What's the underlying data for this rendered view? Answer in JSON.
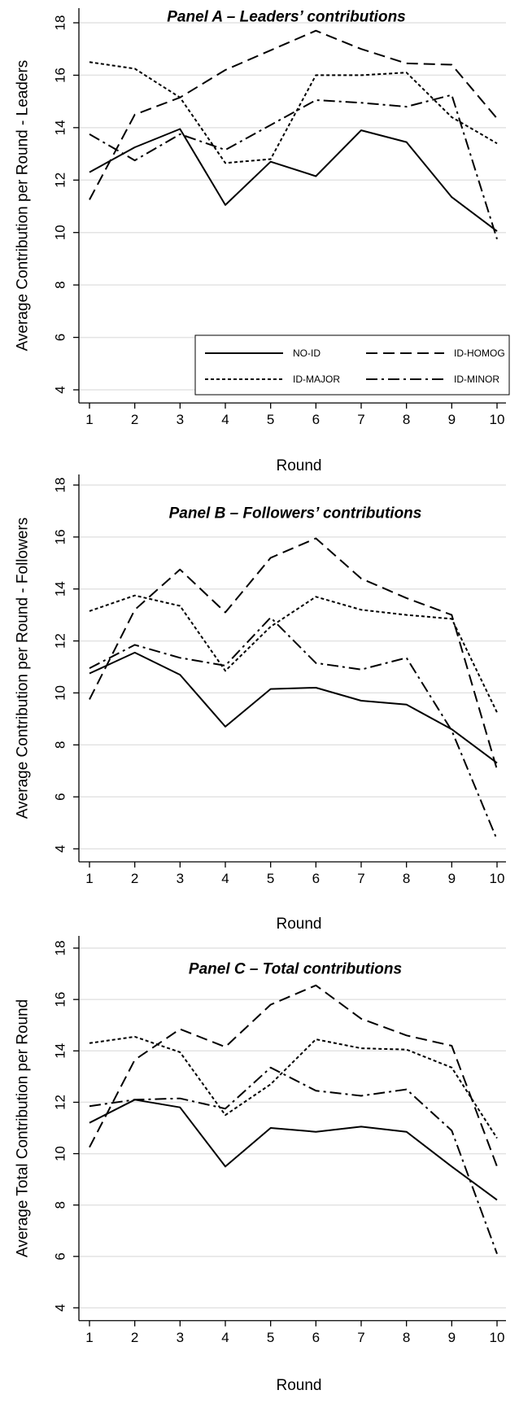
{
  "styles": [
    {
      "name": "NO-ID",
      "dash": "",
      "color": "#000000"
    },
    {
      "name": "ID-HOMOG",
      "dash": "14,7",
      "color": "#000000"
    },
    {
      "name": "ID-MAJOR",
      "dash": "4,3",
      "color": "#000000"
    },
    {
      "name": "ID-MINOR",
      "dash": "14,5,3,5",
      "color": "#000000"
    }
  ],
  "chart_data": [
    {
      "type": "line",
      "title": "Panel A – Leaders’ contributions",
      "xlabel": "Round",
      "ylabel": "Average Contribution per Round - Leaders",
      "x": [
        1,
        2,
        3,
        4,
        5,
        6,
        7,
        8,
        9,
        10
      ],
      "yticks": [
        4,
        6,
        8,
        10,
        12,
        14,
        16,
        18
      ],
      "ylim": [
        3.5,
        18.5
      ],
      "grid": true,
      "legend": {
        "placement": "bottom-right",
        "entries": [
          "NO-ID",
          "ID-HOMOG",
          "ID-MAJOR",
          "ID-MINOR"
        ]
      },
      "series": [
        {
          "name": "NO-ID",
          "values": [
            12.3,
            13.25,
            13.95,
            11.05,
            12.7,
            12.15,
            13.9,
            13.45,
            11.35,
            10.05
          ]
        },
        {
          "name": "ID-HOMOG",
          "values": [
            11.25,
            14.5,
            15.15,
            16.2,
            16.95,
            17.7,
            17.0,
            16.45,
            16.4,
            14.35
          ]
        },
        {
          "name": "ID-MAJOR",
          "values": [
            16.5,
            16.25,
            15.15,
            12.65,
            12.8,
            16.0,
            16.0,
            16.1,
            14.4,
            13.4
          ]
        },
        {
          "name": "ID-MINOR",
          "values": [
            13.75,
            12.75,
            13.75,
            13.15,
            14.1,
            15.05,
            14.95,
            14.8,
            15.25,
            9.75
          ]
        }
      ]
    },
    {
      "type": "line",
      "title": "Panel B – Followers’ contributions",
      "xlabel": "Round",
      "ylabel": "Average Contribution per Round - Followers",
      "x": [
        1,
        2,
        3,
        4,
        5,
        6,
        7,
        8,
        9,
        10
      ],
      "yticks": [
        4,
        6,
        8,
        10,
        12,
        14,
        16,
        18
      ],
      "ylim": [
        3.5,
        18.5
      ],
      "grid": true,
      "series": [
        {
          "name": "NO-ID",
          "values": [
            10.75,
            11.55,
            10.7,
            8.7,
            10.15,
            10.2,
            9.7,
            9.55,
            8.6,
            7.3
          ]
        },
        {
          "name": "ID-HOMOG",
          "values": [
            9.75,
            13.2,
            14.75,
            13.1,
            15.2,
            15.95,
            14.4,
            13.65,
            13.0,
            7.05
          ]
        },
        {
          "name": "ID-MAJOR",
          "values": [
            13.15,
            13.75,
            13.35,
            10.85,
            12.55,
            13.7,
            13.2,
            13.0,
            12.85,
            9.25
          ]
        },
        {
          "name": "ID-MINOR",
          "values": [
            10.95,
            11.85,
            11.35,
            11.05,
            12.9,
            11.15,
            10.9,
            11.35,
            8.55,
            4.35
          ]
        }
      ]
    },
    {
      "type": "line",
      "title": "Panel C – Total contributions",
      "xlabel": "Round",
      "ylabel": "Average Total Contribution per Round",
      "x": [
        1,
        2,
        3,
        4,
        5,
        6,
        7,
        8,
        9,
        10
      ],
      "yticks": [
        4,
        6,
        8,
        10,
        12,
        14,
        16,
        18
      ],
      "ylim": [
        3.5,
        18.5
      ],
      "grid": true,
      "series": [
        {
          "name": "NO-ID",
          "values": [
            11.2,
            12.1,
            11.8,
            9.5,
            11.0,
            10.85,
            11.05,
            10.85,
            9.5,
            8.2
          ]
        },
        {
          "name": "ID-HOMOG",
          "values": [
            10.25,
            13.65,
            14.85,
            14.15,
            15.8,
            16.55,
            15.25,
            14.6,
            14.2,
            9.5
          ]
        },
        {
          "name": "ID-MAJOR",
          "values": [
            14.3,
            14.55,
            13.95,
            11.5,
            12.7,
            14.45,
            14.1,
            14.05,
            13.35,
            10.6
          ]
        },
        {
          "name": "ID-MINOR",
          "values": [
            11.85,
            12.1,
            12.15,
            11.75,
            13.35,
            12.45,
            12.25,
            12.5,
            10.9,
            6.1
          ]
        }
      ]
    }
  ]
}
